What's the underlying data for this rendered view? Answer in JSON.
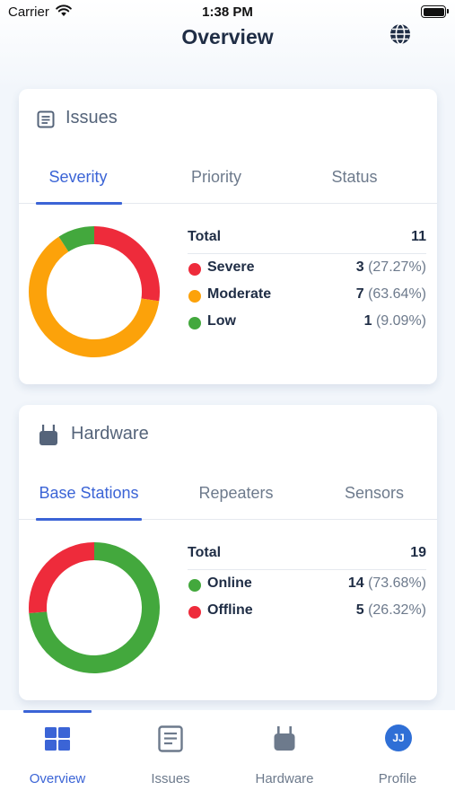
{
  "status_bar": {
    "carrier": "Carrier",
    "time": "1:38 PM"
  },
  "header": {
    "title": "Overview",
    "language_icon": "globe-icon"
  },
  "issues_card": {
    "title": "Issues",
    "icon": "document-list-icon",
    "tabs": [
      {
        "label": "Severity",
        "active": true
      },
      {
        "label": "Priority",
        "active": false
      },
      {
        "label": "Status",
        "active": false
      }
    ],
    "total_label": "Total",
    "total_value": "11",
    "rows": [
      {
        "name": "Severe",
        "count": "3",
        "percent": "(27.27%)",
        "color": "#ee2b3b"
      },
      {
        "name": "Moderate",
        "count": "7",
        "percent": "(63.64%)",
        "color": "#fca20a"
      },
      {
        "name": "Low",
        "count": "1",
        "percent": "(9.09%)",
        "color": "#43a83d"
      }
    ],
    "chart_data": {
      "type": "pie",
      "categories": [
        "Severe",
        "Moderate",
        "Low"
      ],
      "values": [
        3,
        7,
        1
      ],
      "colors": [
        "#ee2b3b",
        "#fca20a",
        "#43a83d"
      ]
    }
  },
  "hardware_card": {
    "title": "Hardware",
    "icon": "base-station-icon",
    "tabs": [
      {
        "label": "Base Stations",
        "active": true
      },
      {
        "label": "Repeaters",
        "active": false
      },
      {
        "label": "Sensors",
        "active": false
      }
    ],
    "total_label": "Total",
    "total_value": "19",
    "rows": [
      {
        "name": "Online",
        "count": "14",
        "percent": "(73.68%)",
        "color": "#43a83d"
      },
      {
        "name": "Offline",
        "count": "5",
        "percent": "(26.32%)",
        "color": "#ee2b3b"
      }
    ],
    "chart_data": {
      "type": "pie",
      "categories": [
        "Online",
        "Offline"
      ],
      "values": [
        14,
        5
      ],
      "colors": [
        "#43a83d",
        "#ee2b3b"
      ]
    }
  },
  "tabbar": {
    "items": [
      {
        "label": "Overview",
        "icon": "grid-icon",
        "active": true
      },
      {
        "label": "Issues",
        "icon": "document-list-icon",
        "active": false
      },
      {
        "label": "Hardware",
        "icon": "base-station-icon",
        "active": false
      },
      {
        "label": "Profile",
        "avatar_initials": "JJ",
        "active": false
      }
    ]
  },
  "colors": {
    "accent": "#3b64d6",
    "text": "#1f2d45",
    "muted": "#6d7a8c"
  }
}
